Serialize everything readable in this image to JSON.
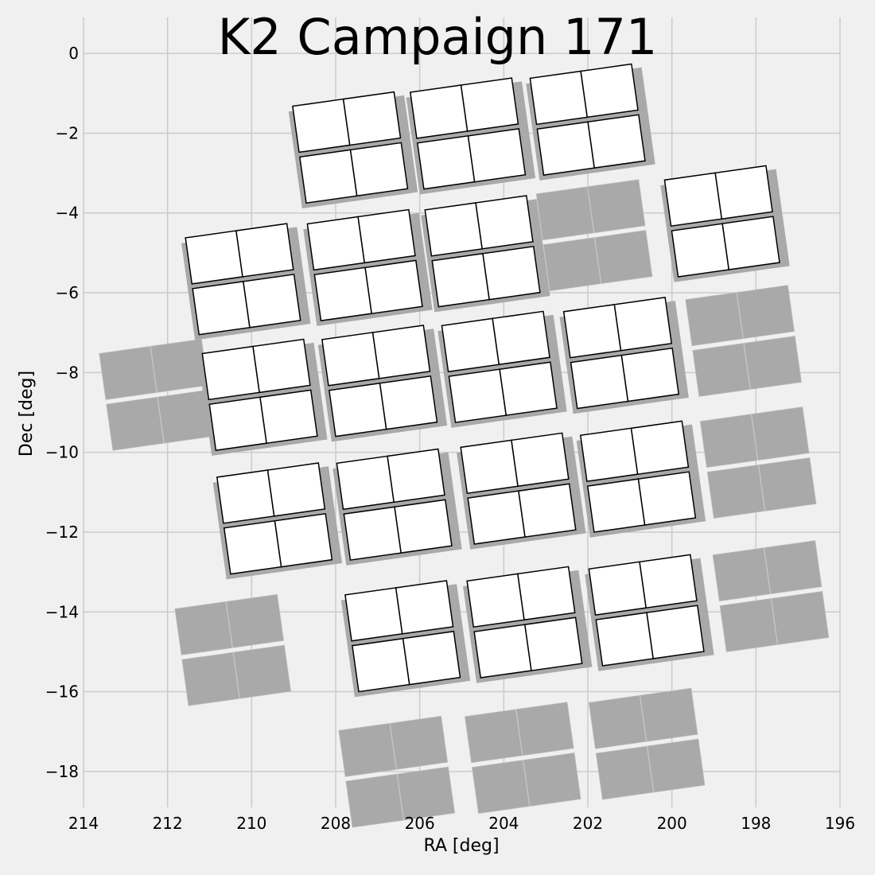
{
  "chart_data": {
    "type": "footprint",
    "title": "K2 Campaign 171",
    "xlabel": "RA [deg]",
    "ylabel": "Dec [deg]",
    "xlim": [
      214,
      196
    ],
    "ylim": [
      -18.9,
      0.9
    ],
    "x_ticks": [
      "214",
      "212",
      "210",
      "208",
      "206",
      "204",
      "202",
      "200",
      "198",
      "196"
    ],
    "y_ticks": [
      "0",
      "−2",
      "−4",
      "−6",
      "−8",
      "−10",
      "−12",
      "−14",
      "−16",
      "−18"
    ],
    "x_tick_values": [
      214,
      212,
      210,
      208,
      206,
      204,
      202,
      200,
      198,
      196
    ],
    "y_tick_values": [
      0,
      -2,
      -4,
      -6,
      -8,
      -10,
      -12,
      -14,
      -16,
      -18
    ],
    "grid": true,
    "colors": {
      "background": "#f0f0f0",
      "grid": "#cbcbcb",
      "on_silicon": "#ffffff",
      "off_silicon": "#a9a9a9",
      "edge": "#000000"
    },
    "module_rotation_deg": 8,
    "module_width_deg": 2.55,
    "module_height_deg": 2.45,
    "modules": [
      {
        "ra": 206.5,
        "dec": -18.0,
        "on": false
      },
      {
        "ra": 203.5,
        "dec": -17.65,
        "on": false
      },
      {
        "ra": 200.55,
        "dec": -17.3,
        "on": false
      },
      {
        "ra": 210.4,
        "dec": -14.95,
        "on": false
      },
      {
        "ra": 206.35,
        "dec": -14.6,
        "on": true
      },
      {
        "ra": 203.45,
        "dec": -14.25,
        "on": true
      },
      {
        "ra": 200.55,
        "dec": -13.95,
        "on": true
      },
      {
        "ra": 197.6,
        "dec": -13.6,
        "on": false
      },
      {
        "ra": 209.4,
        "dec": -11.65,
        "on": true
      },
      {
        "ra": 206.55,
        "dec": -11.3,
        "on": true
      },
      {
        "ra": 203.6,
        "dec": -10.9,
        "on": true
      },
      {
        "ra": 200.75,
        "dec": -10.6,
        "on": true
      },
      {
        "ra": 197.9,
        "dec": -10.25,
        "on": false
      },
      {
        "ra": 212.2,
        "dec": -8.55,
        "on": false
      },
      {
        "ra": 209.75,
        "dec": -8.55,
        "on": true
      },
      {
        "ra": 206.9,
        "dec": -8.2,
        "on": true
      },
      {
        "ra": 204.05,
        "dec": -7.85,
        "on": true
      },
      {
        "ra": 201.15,
        "dec": -7.5,
        "on": true
      },
      {
        "ra": 198.25,
        "dec": -7.2,
        "on": false
      },
      {
        "ra": 210.15,
        "dec": -5.65,
        "on": true
      },
      {
        "ra": 207.25,
        "dec": -5.3,
        "on": true
      },
      {
        "ra": 204.45,
        "dec": -4.95,
        "on": true
      },
      {
        "ra": 201.8,
        "dec": -4.55,
        "on": false
      },
      {
        "ra": 198.75,
        "dec": -4.2,
        "on": true
      },
      {
        "ra": 207.6,
        "dec": -2.35,
        "on": true
      },
      {
        "ra": 204.8,
        "dec": -2.0,
        "on": true
      },
      {
        "ra": 201.95,
        "dec": -1.65,
        "on": true
      }
    ]
  }
}
